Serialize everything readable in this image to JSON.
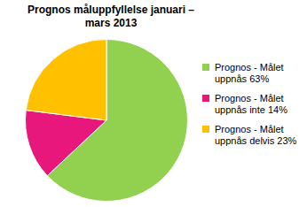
{
  "chart_data": {
    "type": "pie",
    "title": "Prognos måluppfyllelse  januari – mars 2013",
    "categories": [
      "Prognos - Målet uppnås 63%",
      "Prognos - Målet uppnås inte 14%",
      "Prognos - Målet uppnås delvis 23%"
    ],
    "values": [
      63,
      14,
      23
    ],
    "colors": [
      "#92d050",
      "#e8177b",
      "#ffc000"
    ],
    "legend": "right"
  }
}
